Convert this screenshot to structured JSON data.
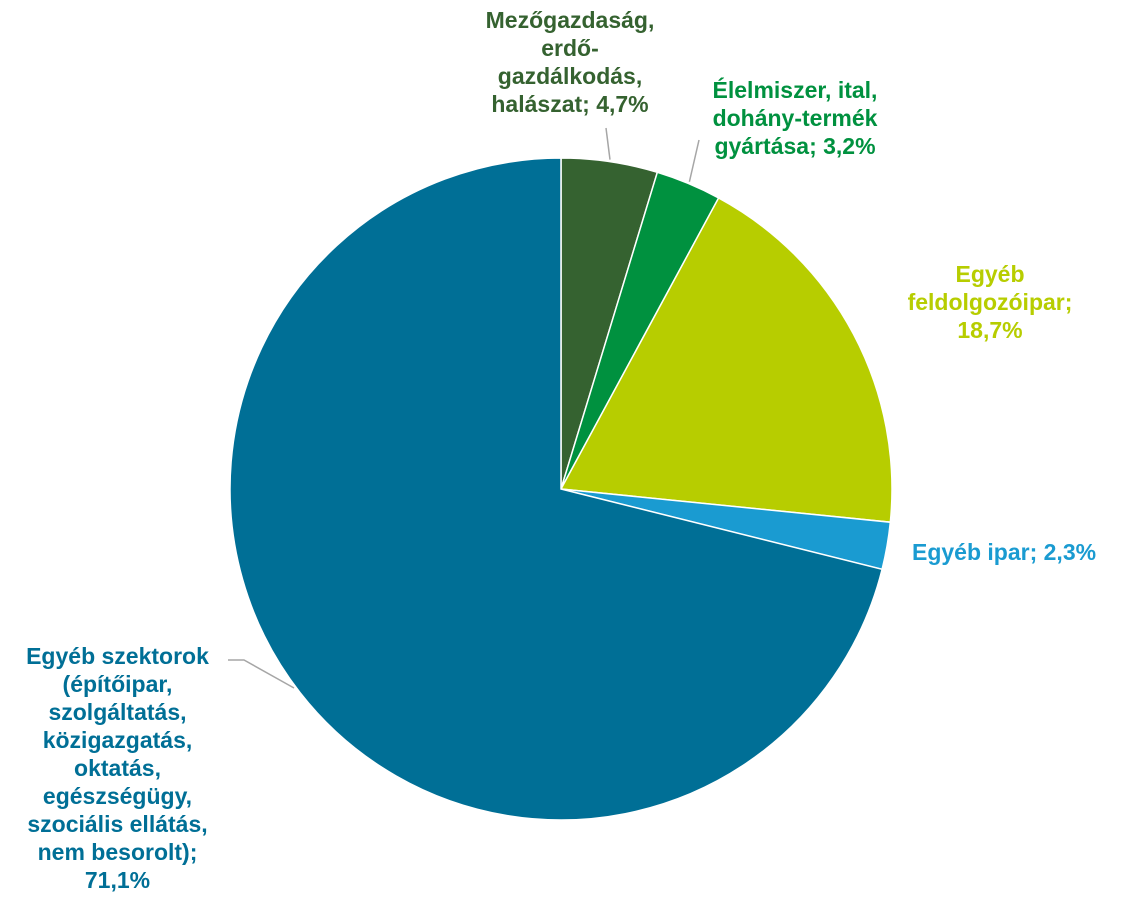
{
  "chart_data": {
    "type": "pie",
    "title": "",
    "start_angle_deg": 0,
    "direction": "clockwise",
    "slices": [
      {
        "label_lines": [
          "Mezőgazdaság,",
          "erdő-",
          "gazdálkodás,",
          "halászat; 4,7%"
        ],
        "value": 4.7,
        "color": "#356230"
      },
      {
        "label_lines": [
          "Élelmiszer, ital,",
          "dohány-termék",
          "gyártása; 3,2%"
        ],
        "value": 3.2,
        "color": "#00913f"
      },
      {
        "label_lines": [
          "Egyéb",
          "feldolgozóipar;",
          "18,7%"
        ],
        "value": 18.7,
        "color": "#b7cd00"
      },
      {
        "label_lines": [
          "Egyéb ipar; 2,3%"
        ],
        "value": 2.3,
        "color": "#1a9bd1"
      },
      {
        "label_lines": [
          "Egyéb szektorok",
          "(építőipar,",
          "szolgáltatás,",
          "közigazgatás,",
          "oktatás,",
          "egészségügy,",
          "szociális ellátás,",
          "nem besorolt);",
          "71,1%"
        ],
        "value": 71.1,
        "color": "#006f96"
      }
    ],
    "leader_line_color": "#a6a6a6"
  }
}
